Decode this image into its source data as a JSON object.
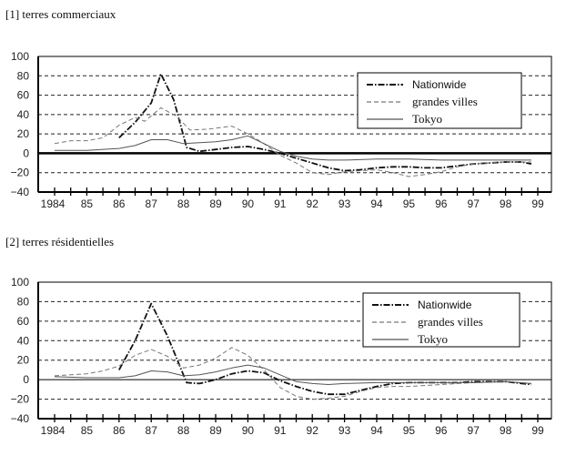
{
  "chart_data": [
    {
      "type": "line",
      "title": "[1] terres commerciaux",
      "xlabel": "",
      "ylabel": "",
      "ylim": [
        -40,
        100
      ],
      "yticks": [
        "100",
        "80",
        "60",
        "40",
        "20",
        "0",
        "−20",
        "−40"
      ],
      "xlim": [
        1984,
        1999
      ],
      "xtick_labels": [
        "1984",
        "85",
        "86",
        "87",
        "88",
        "89",
        "90",
        "91",
        "92",
        "93",
        "94",
        "95",
        "96",
        "97",
        "98",
        "99"
      ],
      "grid": true,
      "legend_position": "top-right",
      "series": [
        {
          "name": "Nationwide",
          "color": "#111111",
          "style": "dashdot",
          "x": [
            1986,
            1986.5,
            1987,
            1987.3,
            1987.7,
            1988.1,
            1988.5,
            1989,
            1989.5,
            1990,
            1990.5,
            1991,
            1991.5,
            1992,
            1992.5,
            1993,
            1993.5,
            1994,
            1994.5,
            1995,
            1995.5,
            1996,
            1996.5,
            1997,
            1997.5,
            1998,
            1998.5,
            1998.8
          ],
          "y": [
            16,
            32,
            52,
            82,
            55,
            6,
            2,
            4,
            6,
            7,
            4,
            0,
            -5,
            -10,
            -15,
            -18,
            -17,
            -15,
            -14,
            -14,
            -15,
            -15,
            -13,
            -11,
            -10,
            -9,
            -9,
            -11
          ]
        },
        {
          "name": "grandes villes",
          "color": "#777777",
          "style": "dashed",
          "x": [
            1984,
            1984.5,
            1985,
            1985.5,
            1986,
            1986.5,
            1986.8,
            1987.3,
            1987.8,
            1988.2,
            1988.8,
            1989.5,
            1990,
            1990.5,
            1991,
            1991.5,
            1992,
            1992.5,
            1993,
            1993.5,
            1994,
            1994.5,
            1995,
            1995.5,
            1996,
            1996.5,
            1997,
            1998,
            1998.8
          ],
          "y": [
            10,
            13,
            13,
            16,
            29,
            37,
            33,
            47,
            38,
            24,
            25,
            28,
            20,
            10,
            -2,
            -10,
            -20,
            -22,
            -19,
            -18,
            -17,
            -20,
            -24,
            -22,
            -19,
            -14,
            -11,
            -9,
            -9
          ]
        },
        {
          "name": "Tokyo",
          "color": "#555555",
          "style": "solid",
          "x": [
            1984,
            1985,
            1986,
            1986.5,
            1987,
            1987.5,
            1988,
            1988.5,
            1989,
            1989.5,
            1990,
            1990.5,
            1991,
            1991.5,
            1992,
            1992.5,
            1993,
            1994,
            1995,
            1996,
            1997,
            1998,
            1998.8
          ],
          "y": [
            3,
            3,
            5,
            8,
            14,
            14,
            10,
            11,
            12,
            14,
            18,
            10,
            2,
            -3,
            -6,
            -7,
            -7,
            -6,
            -6,
            -7,
            -7,
            -7,
            -7
          ]
        }
      ]
    },
    {
      "type": "line",
      "title": "[2] terres résidentielles",
      "xlabel": "",
      "ylabel": "",
      "ylim": [
        -40,
        100
      ],
      "yticks": [
        "100",
        "80",
        "60",
        "40",
        "20",
        "0",
        "−20",
        "−40"
      ],
      "xlim": [
        1984,
        1999
      ],
      "xtick_labels": [
        "1984",
        "85",
        "86",
        "87",
        "88",
        "89",
        "90",
        "91",
        "92",
        "93",
        "94",
        "95",
        "96",
        "97",
        "98",
        "99"
      ],
      "grid": true,
      "legend_position": "top-right",
      "series": [
        {
          "name": "Nationwide",
          "color": "#111111",
          "style": "dashdot",
          "x": [
            1986,
            1986.5,
            1987,
            1987.5,
            1988.1,
            1988.5,
            1989,
            1989.5,
            1990,
            1990.5,
            1991,
            1991.5,
            1992,
            1992.5,
            1993,
            1993.5,
            1994,
            1994.5,
            1995,
            1995.5,
            1996,
            1996.5,
            1997,
            1998,
            1998.8
          ],
          "y": [
            10,
            40,
            78,
            45,
            -3,
            -4,
            0,
            6,
            9,
            7,
            -1,
            -7,
            -12,
            -15,
            -15,
            -11,
            -7,
            -4,
            -3,
            -3,
            -3,
            -3,
            -2,
            -2,
            -5
          ]
        },
        {
          "name": "grandes villes",
          "color": "#777777",
          "style": "dashed",
          "x": [
            1984,
            1985,
            1985.5,
            1986,
            1986.5,
            1987,
            1987.5,
            1988,
            1988.5,
            1989,
            1989.5,
            1990,
            1990.5,
            1991,
            1991.5,
            1992,
            1992.5,
            1993,
            1993.5,
            1994,
            1994.5,
            1995,
            1996,
            1997,
            1998,
            1998.8
          ],
          "y": [
            4,
            6,
            9,
            14,
            25,
            31,
            24,
            12,
            15,
            22,
            33,
            25,
            10,
            -8,
            -17,
            -20,
            -19,
            -17,
            -12,
            -8,
            -7,
            -7,
            -5,
            -3,
            -2,
            -4
          ]
        },
        {
          "name": "Tokyo",
          "color": "#555555",
          "style": "solid",
          "x": [
            1984,
            1985,
            1986,
            1986.5,
            1987,
            1987.5,
            1988,
            1988.5,
            1989,
            1989.5,
            1990,
            1990.5,
            1991,
            1991.5,
            1992,
            1992.5,
            1993,
            1994,
            1995,
            1996,
            1997,
            1998,
            1998.8
          ],
          "y": [
            3,
            2,
            2,
            4,
            9,
            8,
            4,
            5,
            8,
            12,
            15,
            12,
            5,
            -2,
            -4,
            -5,
            -4,
            -3,
            -3,
            -3,
            -3,
            -2,
            -4
          ]
        }
      ]
    }
  ]
}
